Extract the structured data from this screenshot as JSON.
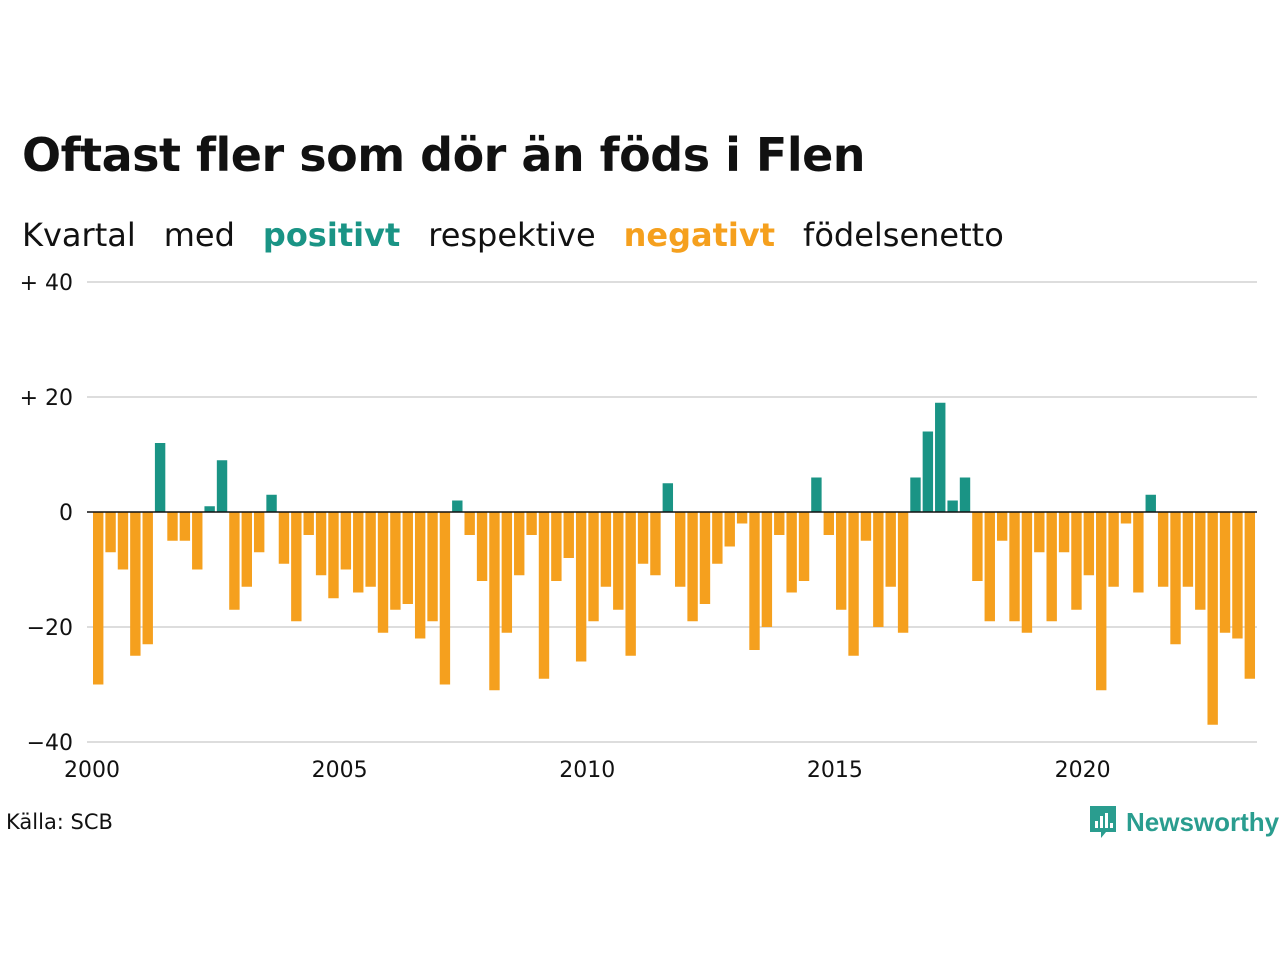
{
  "title": "Oftast fler som dör än föds i Flen",
  "subtitle": {
    "w1": "Kvartal",
    "w2": "med",
    "positive_word": "positivt",
    "w3": "respektive",
    "negative_word": "negativt",
    "w4": "födelsenetto"
  },
  "colors": {
    "positive": "#1a9485",
    "negative": "#f5a01e",
    "grid": "#dddddd",
    "logo": "#2a9d8f"
  },
  "source": "Källa: SCB",
  "logo": {
    "text": "Newsworthy",
    "icon": "newsworthy-logo-icon"
  },
  "chart_data": {
    "type": "bar",
    "title": "Oftast fler som dör än föds i Flen",
    "xlabel": "",
    "ylabel": "",
    "ylim": [
      -40,
      40
    ],
    "y_ticks": [
      {
        "value": 40,
        "label": "+ 40"
      },
      {
        "value": 20,
        "label": "+ 20"
      },
      {
        "value": 0,
        "label": "0"
      },
      {
        "value": -20,
        "label": "−20"
      },
      {
        "value": -40,
        "label": "−40"
      }
    ],
    "x_ticks": [
      {
        "value": 2000,
        "label": "2000"
      },
      {
        "value": 2005,
        "label": "2005"
      },
      {
        "value": 2010,
        "label": "2010"
      },
      {
        "value": 2015,
        "label": "2015"
      },
      {
        "value": 2020,
        "label": "2020"
      }
    ],
    "start": "2000 Q1",
    "grid": true,
    "values": [
      -30,
      -7,
      -10,
      -25,
      -23,
      12,
      -5,
      -5,
      -10,
      1,
      9,
      -17,
      -13,
      -7,
      3,
      -9,
      -19,
      -4,
      -11,
      -15,
      -10,
      -14,
      -13,
      -21,
      -17,
      -16,
      -22,
      -19,
      -30,
      2,
      -4,
      -12,
      -31,
      -21,
      -11,
      -4,
      -29,
      -12,
      -8,
      -26,
      -19,
      -13,
      -17,
      -25,
      -9,
      -11,
      5,
      -13,
      -19,
      -16,
      -9,
      -6,
      -2,
      -24,
      -20,
      -4,
      -14,
      -12,
      6,
      -4,
      -17,
      -25,
      -5,
      -20,
      -13,
      -21,
      6,
      14,
      19,
      2,
      6,
      -12,
      -19,
      -5,
      -19,
      -21,
      -7,
      -19,
      -7,
      -17,
      -11,
      -31,
      -13,
      -2,
      -14,
      3,
      -13,
      -23,
      -13,
      -17,
      -37,
      -21,
      -22,
      -29
    ]
  }
}
